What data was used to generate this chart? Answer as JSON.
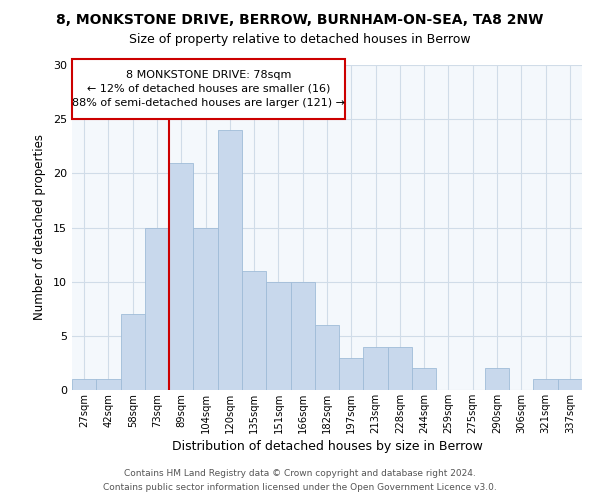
{
  "title1": "8, MONKSTONE DRIVE, BERROW, BURNHAM-ON-SEA, TA8 2NW",
  "title2": "Size of property relative to detached houses in Berrow",
  "xlabel": "Distribution of detached houses by size in Berrow",
  "ylabel": "Number of detached properties",
  "bar_color": "#c8d8ec",
  "bar_edge_color": "#a0bcd8",
  "categories": [
    "27sqm",
    "42sqm",
    "58sqm",
    "73sqm",
    "89sqm",
    "104sqm",
    "120sqm",
    "135sqm",
    "151sqm",
    "166sqm",
    "182sqm",
    "197sqm",
    "213sqm",
    "228sqm",
    "244sqm",
    "259sqm",
    "275sqm",
    "290sqm",
    "306sqm",
    "321sqm",
    "337sqm"
  ],
  "values": [
    1,
    1,
    7,
    15,
    21,
    15,
    24,
    11,
    10,
    10,
    6,
    3,
    4,
    4,
    2,
    0,
    0,
    2,
    0,
    1,
    1
  ],
  "ylim": [
    0,
    30
  ],
  "yticks": [
    0,
    5,
    10,
    15,
    20,
    25,
    30
  ],
  "vline_color": "#cc0000",
  "annotation_line1": "8 MONKSTONE DRIVE: 78sqm",
  "annotation_line2": "← 12% of detached houses are smaller (16)",
  "annotation_line3": "88% of semi-detached houses are larger (121) →",
  "footer1": "Contains HM Land Registry data © Crown copyright and database right 2024.",
  "footer2": "Contains public sector information licensed under the Open Government Licence v3.0.",
  "grid_color": "#d0dce8",
  "bg_color": "#f4f8fc"
}
